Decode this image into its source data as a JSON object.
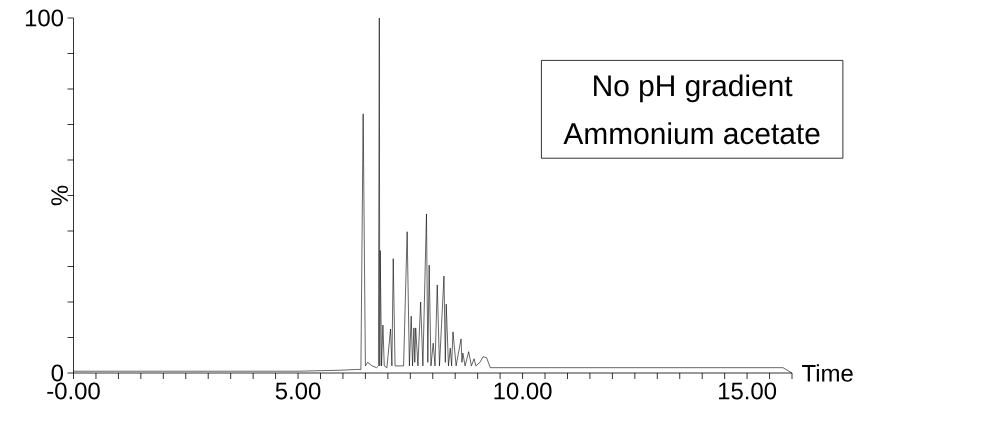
{
  "chart_data": {
    "type": "line",
    "xlabel": "Time",
    "ylabel": "%",
    "annotations": [
      "No pH gradient",
      "Ammonium acetate"
    ],
    "x": [
      0,
      1,
      2,
      3,
      4,
      5,
      6,
      6.3,
      6.4,
      6.45,
      6.5,
      6.55,
      6.65,
      6.75,
      6.79,
      6.81,
      6.82,
      6.83,
      6.86,
      6.89,
      6.92,
      6.98,
      7.06,
      7.09,
      7.12,
      7.16,
      7.35,
      7.43,
      7.48,
      7.52,
      7.55,
      7.58,
      7.6,
      7.62,
      7.67,
      7.73,
      7.78,
      7.86,
      7.89,
      7.92,
      7.96,
      8.01,
      8.05,
      8.1,
      8.15,
      8.25,
      8.28,
      8.3,
      8.35,
      8.39,
      8.42,
      8.45,
      8.52,
      8.63,
      8.65,
      8.67,
      8.72,
      8.8,
      8.86,
      8.92,
      8.96,
      9.05,
      9.12,
      9.2,
      9.28,
      15.8,
      16
    ],
    "series": [
      {
        "color": "#000000",
        "values": [
          0.5,
          0.5,
          0.5,
          0.5,
          0.5,
          0.5,
          0.8,
          1,
          1,
          73,
          2,
          3,
          2,
          1.5,
          2,
          100,
          2,
          34.5,
          2,
          13.5,
          2,
          1.5,
          12.4,
          2,
          32.2,
          2,
          2,
          39.8,
          2,
          16,
          2,
          12.7,
          3,
          12.7,
          2,
          20,
          2,
          44.8,
          3,
          30.4,
          2,
          8.4,
          2,
          24.8,
          2,
          27.3,
          3,
          19.4,
          2,
          7,
          2,
          11.6,
          2,
          9.6,
          3,
          5.6,
          2,
          6,
          2,
          4,
          2,
          3,
          4.6,
          4.3,
          1.5,
          1.5,
          0
        ]
      }
    ],
    "xlim": [
      0,
      16
    ],
    "ylim": [
      0,
      100
    ],
    "xticks": [
      {
        "value": 0,
        "label": "-0.00"
      },
      {
        "value": 0.5,
        "label": null
      },
      {
        "value": 1,
        "label": null
      },
      {
        "value": 1.5,
        "label": null
      },
      {
        "value": 2,
        "label": null
      },
      {
        "value": 2.5,
        "label": null
      },
      {
        "value": 3,
        "label": null
      },
      {
        "value": 3.5,
        "label": null
      },
      {
        "value": 4,
        "label": null
      },
      {
        "value": 4.5,
        "label": null
      },
      {
        "value": 5,
        "label": "5.00"
      },
      {
        "value": 5.5,
        "label": null
      },
      {
        "value": 6,
        "label": null
      },
      {
        "value": 6.5,
        "label": null
      },
      {
        "value": 7,
        "label": null
      },
      {
        "value": 7.5,
        "label": null
      },
      {
        "value": 8,
        "label": null
      },
      {
        "value": 8.5,
        "label": null
      },
      {
        "value": 9,
        "label": null
      },
      {
        "value": 9.5,
        "label": null
      },
      {
        "value": 10,
        "label": "10.00"
      },
      {
        "value": 10.5,
        "label": null
      },
      {
        "value": 11,
        "label": null
      },
      {
        "value": 11.5,
        "label": null
      },
      {
        "value": 12,
        "label": null
      },
      {
        "value": 12.5,
        "label": null
      },
      {
        "value": 13,
        "label": null
      },
      {
        "value": 13.5,
        "label": null
      },
      {
        "value": 14,
        "label": null
      },
      {
        "value": 14.5,
        "label": null
      },
      {
        "value": 15,
        "label": "15.00"
      },
      {
        "value": 15.5,
        "label": null
      },
      {
        "value": 16,
        "label": null
      }
    ],
    "yticks": [
      0,
      {
        "value": 10,
        "label": null
      },
      {
        "value": 20,
        "label": null
      },
      {
        "value": 30,
        "label": null
      },
      {
        "value": 40,
        "label": null
      },
      {
        "value": 50,
        "label": null
      },
      {
        "value": 60,
        "label": null
      },
      {
        "value": 70,
        "label": null
      },
      {
        "value": 80,
        "label": null
      },
      {
        "value": 90,
        "label": null
      },
      100
    ]
  }
}
